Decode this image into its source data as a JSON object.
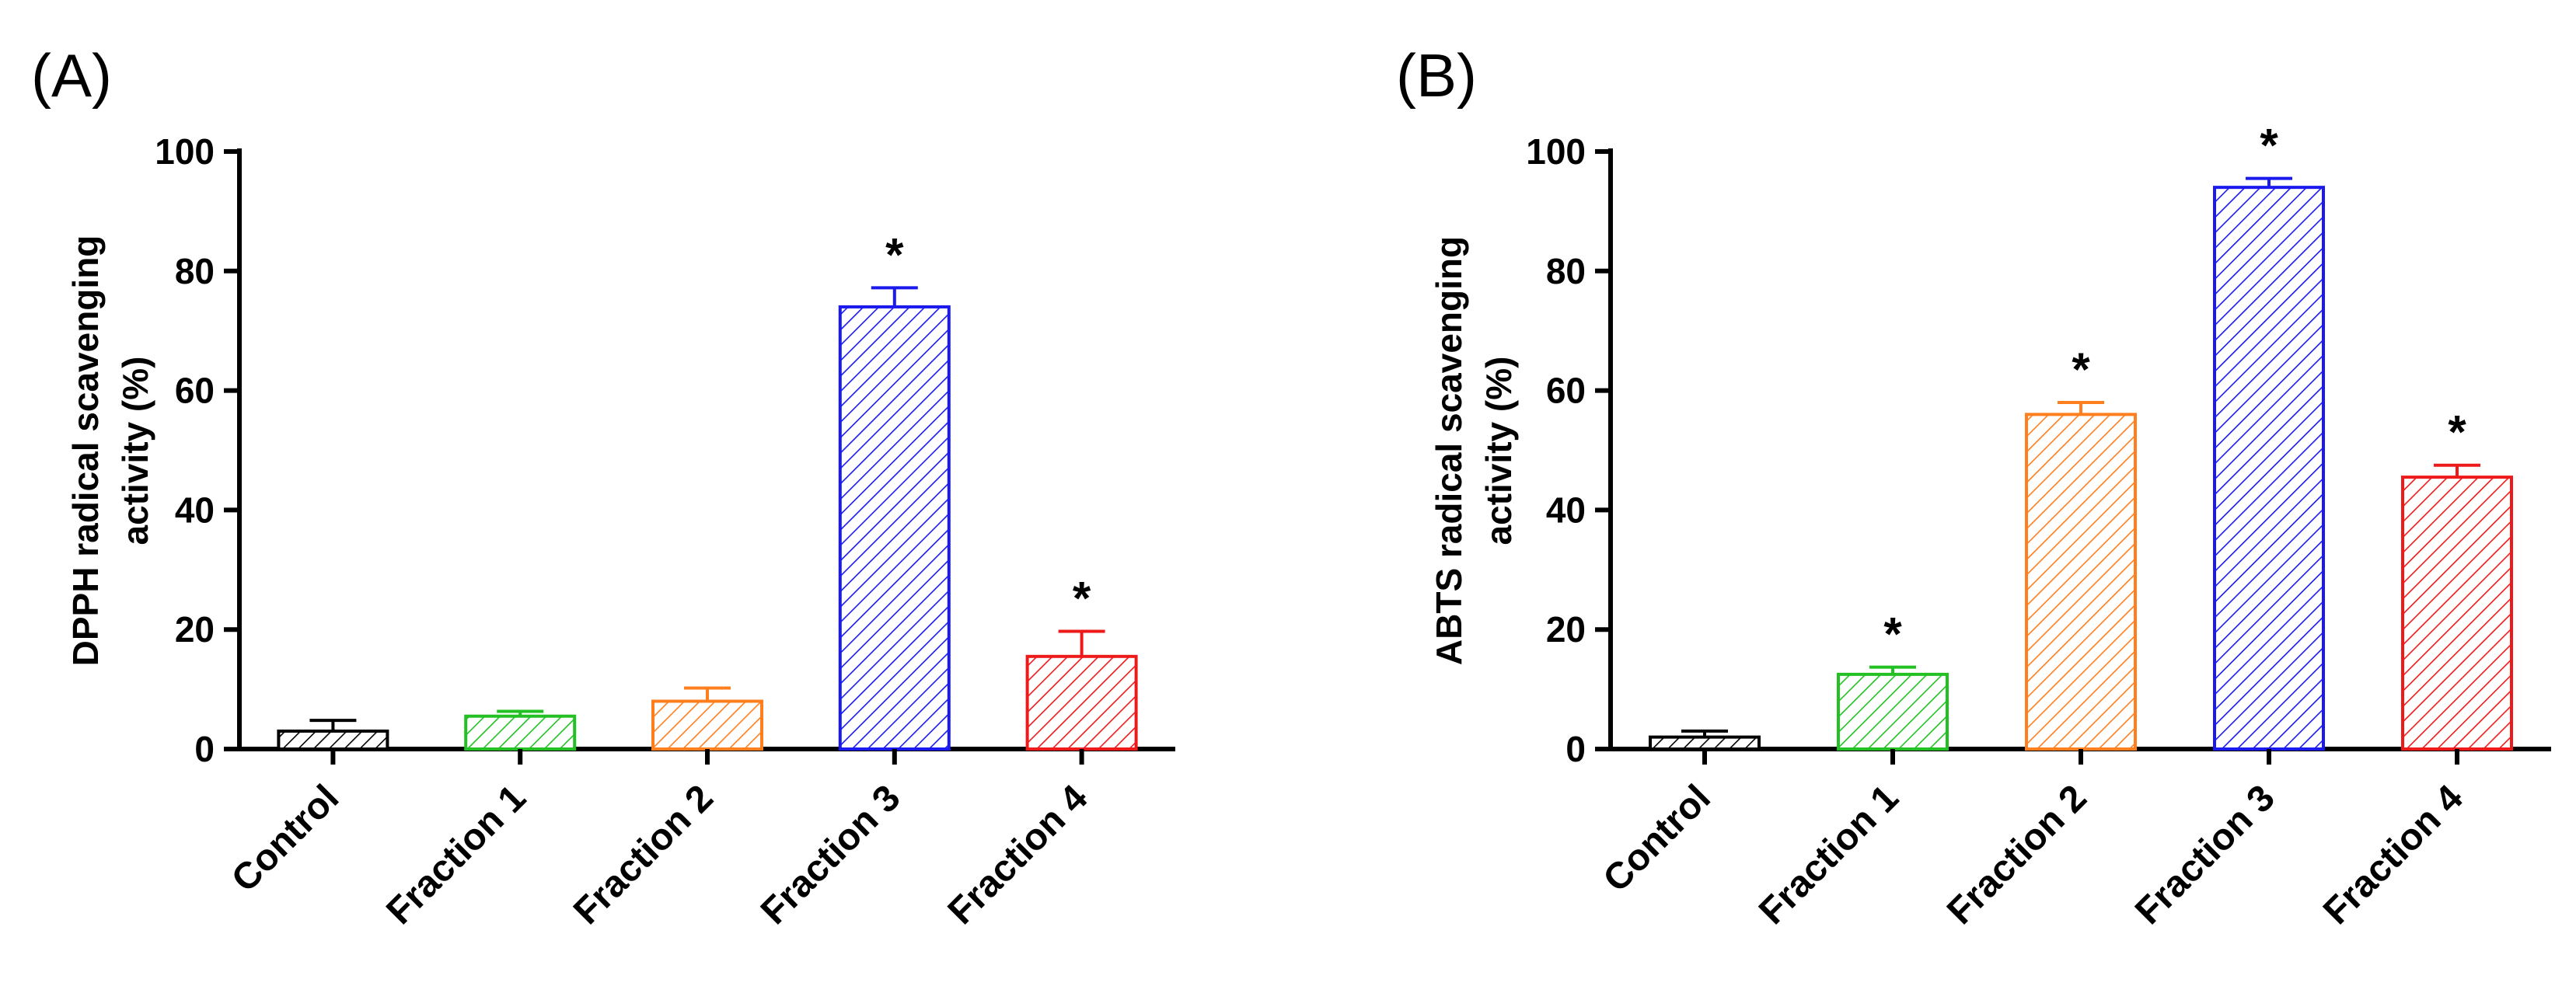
{
  "chart_data": [
    {
      "type": "bar",
      "panel": "(A)",
      "title": "",
      "xlabel": "",
      "ylabel_lines": [
        "DPPH radical scavenging",
        "activity (%)"
      ],
      "ylim": [
        0,
        100
      ],
      "yticks": [
        "0",
        "20",
        "40",
        "60",
        "80",
        "100"
      ],
      "categories": [
        "Control",
        "Fraction 1",
        "Fraction 2",
        "Fraction 3",
        "Fraction 4"
      ],
      "values": [
        3,
        5.5,
        8,
        74,
        15.5
      ],
      "errors": [
        1.8,
        0.8,
        2.2,
        3.2,
        4.2
      ],
      "significance": [
        "",
        "",
        "",
        "*",
        "*"
      ],
      "colors": [
        "#000000",
        "#22c022",
        "#ff7f1e",
        "#1a1aee",
        "#ee1a1a"
      ],
      "fill": "diagonal-hatch"
    },
    {
      "type": "bar",
      "panel": "(B)",
      "title": "",
      "xlabel": "",
      "ylabel_lines": [
        "ABTS radical scavenging",
        "activity (%)"
      ],
      "ylim": [
        0,
        100
      ],
      "yticks": [
        "0",
        "20",
        "40",
        "60",
        "80",
        "100"
      ],
      "categories": [
        "Control",
        "Fraction 1",
        "Fraction 2",
        "Fraction 3",
        "Fraction 4"
      ],
      "values": [
        2,
        12.5,
        56,
        94,
        45.5
      ],
      "errors": [
        1,
        1.2,
        2,
        1.5,
        2
      ],
      "significance": [
        "",
        "*",
        "*",
        "*",
        "*"
      ],
      "colors": [
        "#000000",
        "#22c022",
        "#ff7f1e",
        "#1a1aee",
        "#ee1a1a"
      ],
      "fill": "diagonal-hatch"
    }
  ]
}
